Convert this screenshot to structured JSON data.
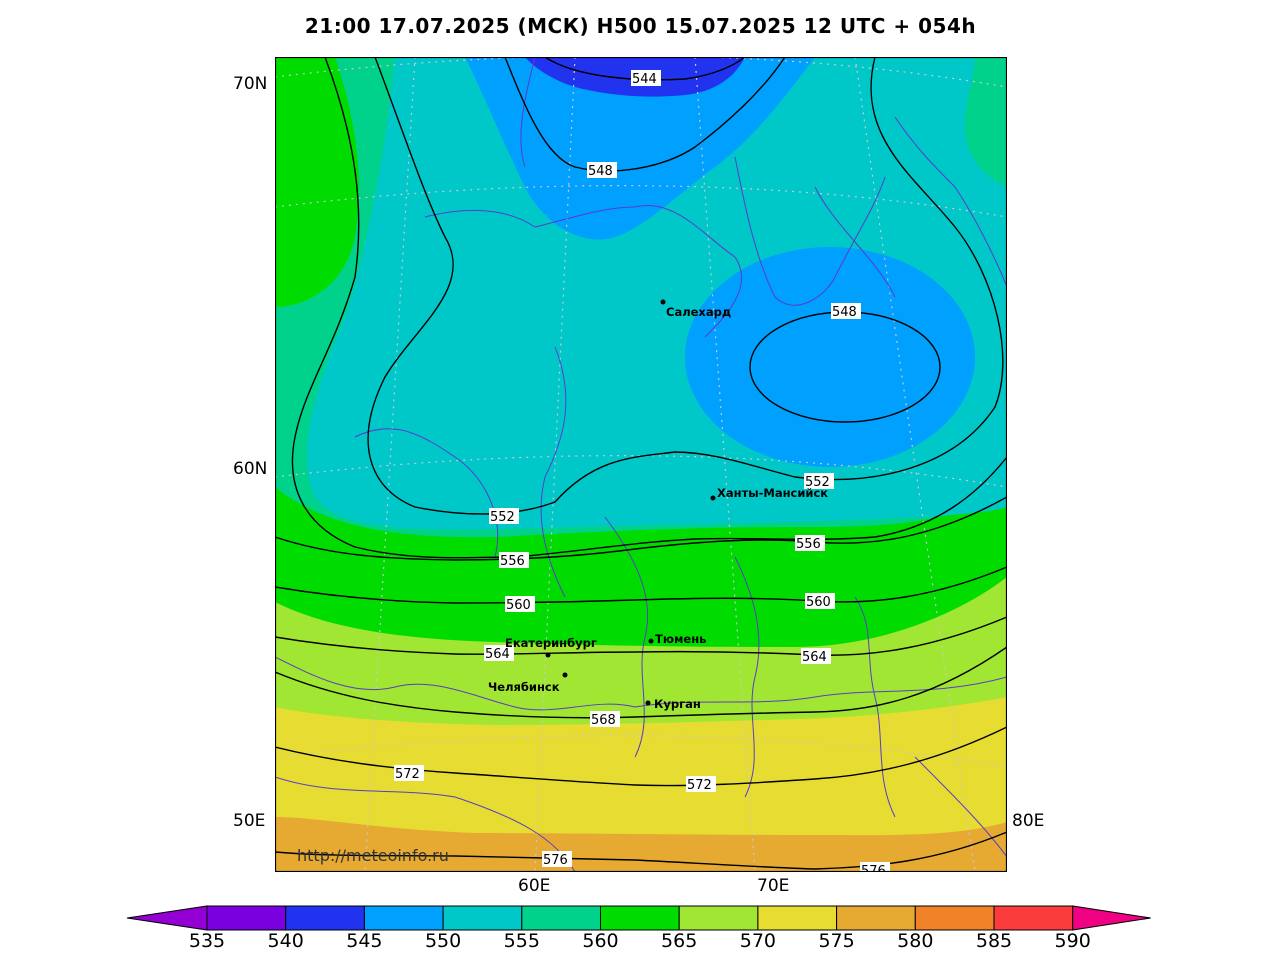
{
  "title": "21:00 17.07.2025 (МСК) H500  15.07.2025 12 UTC + 054h",
  "watermark": "http://meteoinfo.ru",
  "lat_labels": [
    "70N",
    "60N",
    "50E"
  ],
  "lon_labels": [
    "60E",
    "70E",
    "80E"
  ],
  "contours": [
    {
      "value": "544"
    },
    {
      "value": "548"
    },
    {
      "value": "548"
    },
    {
      "value": "552"
    },
    {
      "value": "552"
    },
    {
      "value": "556"
    },
    {
      "value": "556"
    },
    {
      "value": "560"
    },
    {
      "value": "560"
    },
    {
      "value": "564"
    },
    {
      "value": "564"
    },
    {
      "value": "568"
    },
    {
      "value": "572"
    },
    {
      "value": "572"
    },
    {
      "value": "576"
    },
    {
      "value": "576"
    }
  ],
  "cities": [
    {
      "name": "Салехард"
    },
    {
      "name": "Ханты-Мансийск"
    },
    {
      "name": "Екатеринбург"
    },
    {
      "name": "Тюмень"
    },
    {
      "name": "Челябинск"
    },
    {
      "name": "Курган"
    }
  ],
  "colorbar": {
    "labels": [
      "535",
      "540",
      "545",
      "550",
      "555",
      "560",
      "565",
      "570",
      "575",
      "580",
      "585",
      "590"
    ],
    "colors": [
      "#9400d3",
      "#7a00e0",
      "#2233f0",
      "#00a0ff",
      "#00c8c8",
      "#00d28c",
      "#00dc00",
      "#a0e632",
      "#e6dc32",
      "#e6aa32",
      "#f08228",
      "#fa3c3c",
      "#f00082"
    ]
  }
}
